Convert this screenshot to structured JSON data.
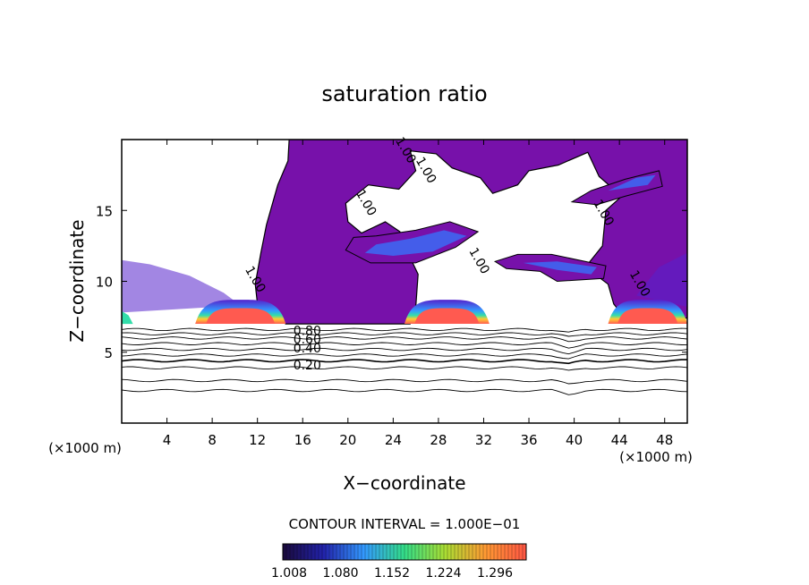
{
  "chart_data": {
    "type": "heatmap",
    "title": "saturation ratio",
    "xlabel": "X−coordinate",
    "ylabel": "Z−coordinate",
    "x_unit_left": "(×1000 m)",
    "x_unit_right": "(×1000 m)",
    "xlim": [
      0,
      50
    ],
    "ylim": [
      0,
      20
    ],
    "x_ticks": [
      4,
      8,
      12,
      16,
      20,
      24,
      28,
      32,
      36,
      40,
      44,
      48
    ],
    "y_ticks": [
      5,
      10,
      15
    ],
    "contour_interval_text": "CONTOUR INTERVAL = 1.000E−01",
    "contour_labels": [
      {
        "text": "1.00",
        "x": 11.5,
        "z": 10.0
      },
      {
        "text": "1.00",
        "x": 21.3,
        "z": 15.4
      },
      {
        "text": "1.00",
        "x": 26.6,
        "z": 17.7
      },
      {
        "text": "1.00",
        "x": 24.8,
        "z": 19.1
      },
      {
        "text": "1.00",
        "x": 31.3,
        "z": 11.3
      },
      {
        "text": "1.00",
        "x": 42.3,
        "z": 14.7
      },
      {
        "text": "1.00",
        "x": 45.5,
        "z": 9.7
      },
      {
        "text": "0.80",
        "x": 16.4,
        "z": 6.2
      },
      {
        "text": "0.60",
        "x": 16.4,
        "z": 5.6
      },
      {
        "text": "0.40",
        "x": 16.4,
        "z": 5.0
      },
      {
        "text": "0.20",
        "x": 16.4,
        "z": 3.8
      }
    ],
    "subsaturated_contours_z": [
      6.6,
      6.3,
      6.0,
      5.6,
      5.2,
      4.8,
      4.4,
      3.9,
      3.0,
      2.3
    ],
    "supersaturated_cores": [
      {
        "x_range": [
          6.5,
          14.5
        ],
        "z_range": [
          7.0,
          8.7
        ]
      },
      {
        "x_range": [
          25.0,
          32.5
        ],
        "z_range": [
          7.0,
          8.7
        ]
      },
      {
        "x_range": [
          43.0,
          50.0
        ],
        "z_range": [
          7.0,
          8.7
        ]
      }
    ],
    "colorbar": {
      "tick_labels": [
        "1.008",
        "1.080",
        "1.152",
        "1.224",
        "1.296"
      ],
      "colors": [
        "#1a0a3a",
        "#2222aa",
        "#3399ff",
        "#33dd88",
        "#aadd33",
        "#ff9933",
        "#ff5544"
      ]
    },
    "field_colors": {
      "background_supersaturated": "#7711aa",
      "low_supersaturation": "#5522cc",
      "mid": "#3377ff",
      "high": "#33ddaa",
      "peak": "#ff5a50",
      "below_saturation": "#ffffff"
    }
  }
}
